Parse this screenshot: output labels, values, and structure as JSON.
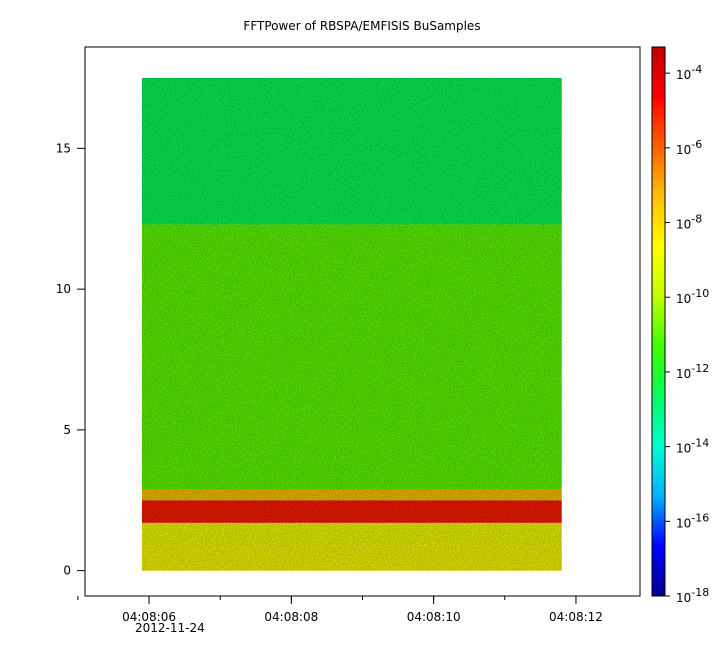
{
  "chart_data": {
    "type": "heatmap",
    "title": "FFTPower of RBSPA/EMFISIS  BuSamples",
    "xlabel": "",
    "ylabel": "",
    "x_ticks": [
      "04:08:06",
      "04:08:08",
      "04:08:10",
      "04:08:12"
    ],
    "x_date": "2012-11-24",
    "x_range_seconds": [
      5.1,
      12.9
    ],
    "x_data_range_seconds": [
      5.9,
      11.8
    ],
    "x_minor_tick_seconds": [
      5.0,
      6.0,
      7.0,
      8.0,
      9.0,
      10.0,
      11.0,
      12.0
    ],
    "y_ticks": [
      0,
      5,
      10,
      15
    ],
    "ylim": [
      -0.9,
      18.6
    ],
    "y_data_range": [
      0,
      17.5
    ],
    "colorbar": {
      "scale": "log",
      "range_exponents": [
        -18,
        -3.3
      ],
      "ticks": [
        {
          "base": "10",
          "exp": "-4",
          "value": -4
        },
        {
          "base": "10",
          "exp": "-6",
          "value": -6
        },
        {
          "base": "10",
          "exp": "-8",
          "value": -8
        },
        {
          "base": "10",
          "exp": "-10",
          "value": -10
        },
        {
          "base": "10",
          "exp": "-12",
          "value": -12
        },
        {
          "base": "10",
          "exp": "-14",
          "value": -14
        },
        {
          "base": "10",
          "exp": "-16",
          "value": -16
        },
        {
          "base": "10",
          "exp": "-18",
          "value": -18
        }
      ],
      "colors": [
        "#00008f",
        "#0000ff",
        "#00b0ff",
        "#00ffd0",
        "#00ff60",
        "#40ff00",
        "#c0ff00",
        "#ffff00",
        "#ffc000",
        "#ff6000",
        "#ff0000",
        "#c00000"
      ]
    },
    "bands": [
      {
        "y": [
          0.0,
          0.9
        ],
        "log_power": -8.6
      },
      {
        "y": [
          0.9,
          1.7
        ],
        "log_power": -8.8
      },
      {
        "y": [
          1.7,
          2.5
        ],
        "log_power": -5.0
      },
      {
        "y": [
          2.5,
          2.9
        ],
        "log_power": -7.5
      },
      {
        "y": [
          2.9,
          12.3
        ],
        "log_power": -11.0
      },
      {
        "y": [
          12.3,
          17.5
        ],
        "log_power": -12.5
      }
    ]
  }
}
